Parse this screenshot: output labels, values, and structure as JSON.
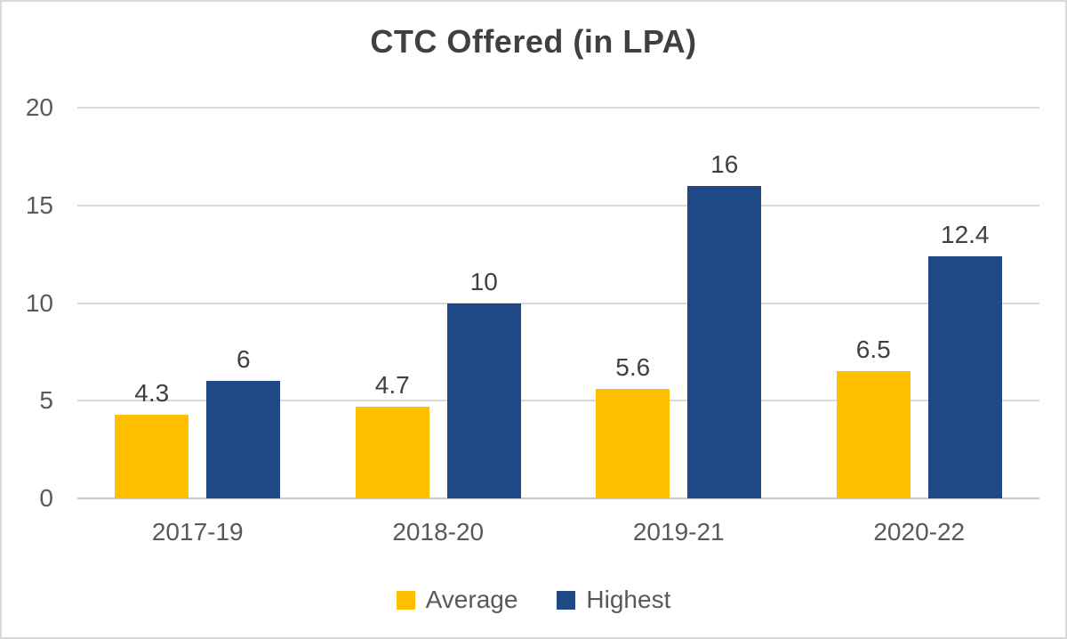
{
  "title": "CTC Offered (in LPA)",
  "chart_data": {
    "type": "bar",
    "title": "CTC Offered (in LPA)",
    "categories": [
      "2017-19",
      "2018-20",
      "2019-21",
      "2020-22"
    ],
    "series": [
      {
        "name": "Average",
        "color": "#FFC000",
        "values": [
          4.3,
          4.7,
          5.6,
          6.5
        ]
      },
      {
        "name": "Highest",
        "color": "#1F4886",
        "values": [
          6,
          10,
          16,
          12.4
        ]
      }
    ],
    "xlabel": "",
    "ylabel": "",
    "ylim": [
      0,
      20
    ],
    "yticks": [
      0,
      5,
      10,
      15,
      20
    ],
    "grid": true,
    "data_labels": true,
    "legend_position": "bottom"
  },
  "colors": {
    "average_bar": "#FFC000",
    "highest_bar": "#1F4886",
    "gridline": "#D9D9D9",
    "axis_line": "#C9C9C9",
    "title_text": "#404040",
    "tick_text": "#595959",
    "frame_border": "#D9D9D9",
    "background": "#FFFFFF"
  }
}
